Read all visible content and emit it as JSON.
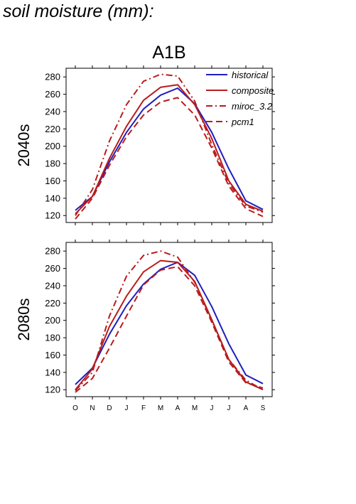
{
  "page_title": "soil moisture (mm):",
  "colors": {
    "historical": "#1f1fbf",
    "composite": "#b81c1c",
    "miroc_3.2": "#b81c1c",
    "pcm1": "#b81c1c"
  },
  "chart_data": [
    {
      "type": "line",
      "title": "A1B",
      "ylabel": "2040s",
      "ylim": [
        112,
        290
      ],
      "yticks": [
        120,
        140,
        160,
        180,
        200,
        220,
        240,
        260,
        280
      ],
      "categories": [
        "O",
        "N",
        "D",
        "J",
        "F",
        "M",
        "A",
        "M",
        "J",
        "J",
        "A",
        "S"
      ],
      "legend": "top-right",
      "series": [
        {
          "name": "historical",
          "style": "solid",
          "values": [
            126,
            142,
            182,
            216,
            243,
            259,
            267,
            249,
            216,
            174,
            137,
            127
          ]
        },
        {
          "name": "composite",
          "style": "solid",
          "values": [
            122,
            142,
            186,
            223,
            253,
            268,
            271,
            248,
            209,
            160,
            133,
            125
          ]
        },
        {
          "name": "miroc_3.2",
          "style": "dashdot",
          "values": [
            120,
            150,
            206,
            248,
            275,
            283,
            281,
            252,
            202,
            157,
            131,
            124
          ]
        },
        {
          "name": "pcm1",
          "style": "dashed",
          "values": [
            116,
            140,
            178,
            211,
            236,
            251,
            256,
            236,
            198,
            154,
            128,
            119
          ]
        }
      ]
    },
    {
      "type": "line",
      "title": "",
      "ylabel": "2080s",
      "xlabels_shown": true,
      "ylim": [
        112,
        290
      ],
      "yticks": [
        120,
        140,
        160,
        180,
        200,
        220,
        240,
        260,
        280
      ],
      "categories": [
        "O",
        "N",
        "D",
        "J",
        "F",
        "M",
        "A",
        "M",
        "J",
        "J",
        "A",
        "S"
      ],
      "series": [
        {
          "name": "historical",
          "style": "solid",
          "values": [
            126,
            145,
            184,
            217,
            242,
            259,
            267,
            252,
            216,
            173,
            137,
            127
          ]
        },
        {
          "name": "composite",
          "style": "solid",
          "values": [
            120,
            144,
            193,
            228,
            256,
            269,
            267,
            245,
            201,
            155,
            129,
            120
          ]
        },
        {
          "name": "miroc_3.2",
          "style": "dashdot",
          "values": [
            119,
            140,
            205,
            251,
            275,
            280,
            273,
            244,
            200,
            155,
            131,
            120
          ]
        },
        {
          "name": "pcm1",
          "style": "dashed",
          "values": [
            117,
            133,
            168,
            205,
            241,
            258,
            262,
            240,
            198,
            152,
            128,
            122
          ]
        }
      ]
    }
  ]
}
